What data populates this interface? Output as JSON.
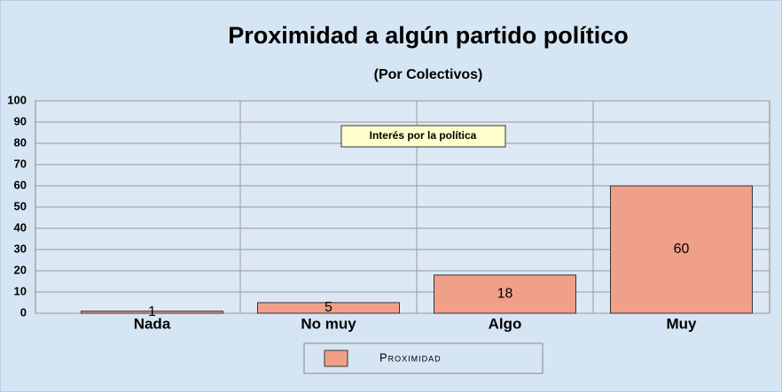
{
  "chart_data": {
    "type": "bar",
    "title": "Proximidad a algún partido político",
    "subtitle": "(Por Colectivos)",
    "annotation": "Interés por la política",
    "categories": [
      "Nada",
      "No muy",
      "Algo",
      "Muy"
    ],
    "series": [
      {
        "name": "Proximidad",
        "color": "#f0a088",
        "values": [
          1,
          5,
          18,
          60
        ]
      }
    ],
    "ylim": [
      0,
      100
    ],
    "yticks": [
      0,
      10,
      20,
      30,
      40,
      50,
      60,
      70,
      80,
      90,
      100
    ],
    "grid": true
  }
}
